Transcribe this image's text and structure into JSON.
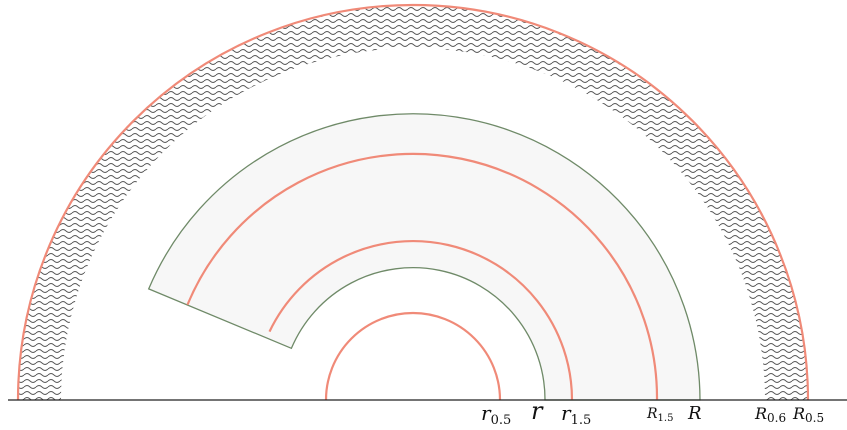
{
  "diagram": {
    "labels": {
      "r_half": {
        "main": "r",
        "sub": "0.5"
      },
      "r": {
        "main": "r",
        "sub": ""
      },
      "r_three_halves": {
        "main": "r",
        "sub": "1.5"
      },
      "R_three_halves": {
        "main": "R",
        "sub": "1.5"
      },
      "R": {
        "main": "R",
        "sub": ""
      },
      "R_point_six": {
        "main": "R",
        "sub": "0.6"
      },
      "R_half": {
        "main": "R",
        "sub": "0.5"
      }
    },
    "colors": {
      "salmon": "#f08a78",
      "green": "#6f8a68",
      "shade": "#f7f7f7",
      "wave": "#555555",
      "axis": "#222222"
    }
  }
}
